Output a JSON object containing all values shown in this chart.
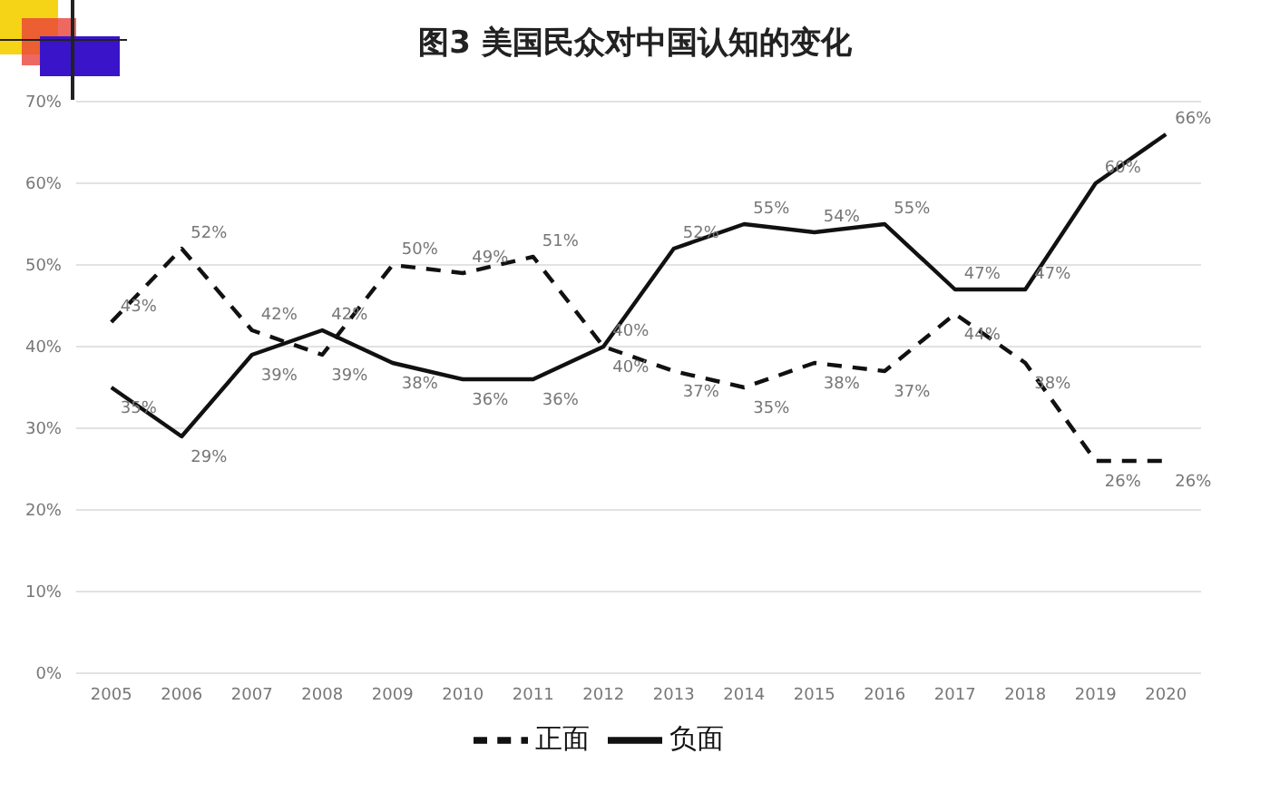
{
  "chart_data": {
    "type": "line",
    "title": "图3  美国民众对中国认知的变化",
    "categories": [
      "2005",
      "2006",
      "2007",
      "2008",
      "2009",
      "2010",
      "2011",
      "2012",
      "2013",
      "2014",
      "2015",
      "2016",
      "2017",
      "2018",
      "2019",
      "2020"
    ],
    "series": [
      {
        "name": "负面",
        "color": "#111111",
        "line_style": "solid",
        "values": [
          35,
          29,
          39,
          42,
          38,
          36,
          36,
          40,
          52,
          55,
          54,
          55,
          47,
          47,
          60,
          66
        ],
        "value_labels": [
          "35%",
          "29%",
          "39%",
          "42%",
          "38%",
          "36%",
          "36%",
          "40%",
          "52%",
          "55%",
          "54%",
          "55%",
          "47%",
          "47%",
          "60%",
          "66%"
        ]
      },
      {
        "name": "正面",
        "color": "#111111",
        "line_style": "dashed",
        "values": [
          43,
          52,
          42,
          39,
          50,
          49,
          51,
          40,
          37,
          35,
          38,
          37,
          44,
          38,
          26,
          26
        ],
        "value_labels": [
          "43%",
          "52%",
          "42%",
          "39%",
          "50%",
          "49%",
          "51%",
          "40%",
          "37%",
          "35%",
          "38%",
          "37%",
          "44%",
          "38%",
          "26%",
          "26%"
        ]
      }
    ],
    "ylim": [
      0,
      70
    ],
    "yticks": [
      {
        "value": 0,
        "label": "0%"
      },
      {
        "value": 10,
        "label": "10%"
      },
      {
        "value": 20,
        "label": "20%"
      },
      {
        "value": 30,
        "label": "30%"
      },
      {
        "value": 40,
        "label": "40%"
      },
      {
        "value": 50,
        "label": "50%"
      },
      {
        "value": 60,
        "label": "60%"
      },
      {
        "value": 70,
        "label": "70%"
      }
    ],
    "grid": "y",
    "legend": "bottom",
    "marker": "none"
  }
}
